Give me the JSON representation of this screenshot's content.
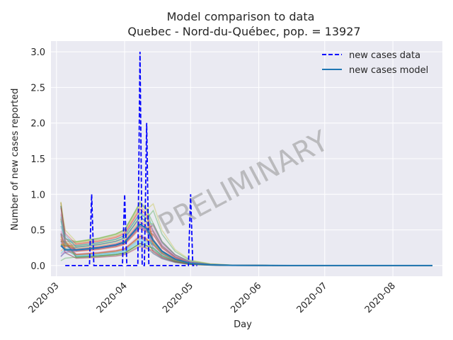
{
  "chart_data": {
    "type": "line",
    "title": "Model comparison to data",
    "subtitle": "Quebec - Nord-du-Québec, pop. = 13927",
    "xlabel": "Day",
    "ylabel": "Number of new cases reported",
    "x_range": [
      "2020-03-03",
      "2020-08-19"
    ],
    "ylim": [
      -0.15,
      3.15
    ],
    "grid": true,
    "legend_position": "top-right",
    "watermark": "PRELIMINARY",
    "x_ticks": [
      "2020-03",
      "2020-04",
      "2020-05",
      "2020-06",
      "2020-07",
      "2020-08"
    ],
    "y_ticks": [
      "0.0",
      "0.5",
      "1.0",
      "1.5",
      "2.0",
      "2.5",
      "3.0"
    ],
    "series": [
      {
        "name": "new cases data",
        "style": "dashed",
        "color": "#0000ff",
        "points": [
          [
            "2020-03-05",
            0
          ],
          [
            "2020-03-16",
            0
          ],
          [
            "2020-03-17",
            1
          ],
          [
            "2020-03-18",
            0
          ],
          [
            "2020-03-31",
            0
          ],
          [
            "2020-04-01",
            1
          ],
          [
            "2020-04-02",
            0
          ],
          [
            "2020-04-07",
            0
          ],
          [
            "2020-04-08",
            3
          ],
          [
            "2020-04-09",
            0
          ],
          [
            "2020-04-10",
            0
          ],
          [
            "2020-04-11",
            2
          ],
          [
            "2020-04-12",
            0
          ],
          [
            "2020-04-30",
            0
          ],
          [
            "2020-05-01",
            1
          ],
          [
            "2020-05-02",
            0
          ],
          [
            "2020-05-04",
            0
          ]
        ]
      },
      {
        "name": "new cases model",
        "style": "solid",
        "color": "#1f77b4",
        "points": [
          [
            "2020-03-03",
            0.28
          ],
          [
            "2020-03-05",
            0.22
          ],
          [
            "2020-03-10",
            0.22
          ],
          [
            "2020-03-20",
            0.25
          ],
          [
            "2020-03-28",
            0.29
          ],
          [
            "2020-04-01",
            0.33
          ],
          [
            "2020-04-05",
            0.47
          ],
          [
            "2020-04-08",
            0.58
          ],
          [
            "2020-04-11",
            0.52
          ],
          [
            "2020-04-14",
            0.35
          ],
          [
            "2020-04-18",
            0.2
          ],
          [
            "2020-04-24",
            0.09
          ],
          [
            "2020-05-01",
            0.03
          ],
          [
            "2020-05-10",
            0.01
          ],
          [
            "2020-05-20",
            0.003
          ],
          [
            "2020-06-15",
            0
          ],
          [
            "2020-08-19",
            0
          ]
        ]
      }
    ],
    "ensemble": {
      "count": 40,
      "colors": [
        "#1f77b4",
        "#ff7f0e",
        "#2ca02c",
        "#d62728",
        "#9467bd",
        "#8c564b",
        "#e377c2",
        "#bcbd22",
        "#17becf"
      ]
    }
  }
}
